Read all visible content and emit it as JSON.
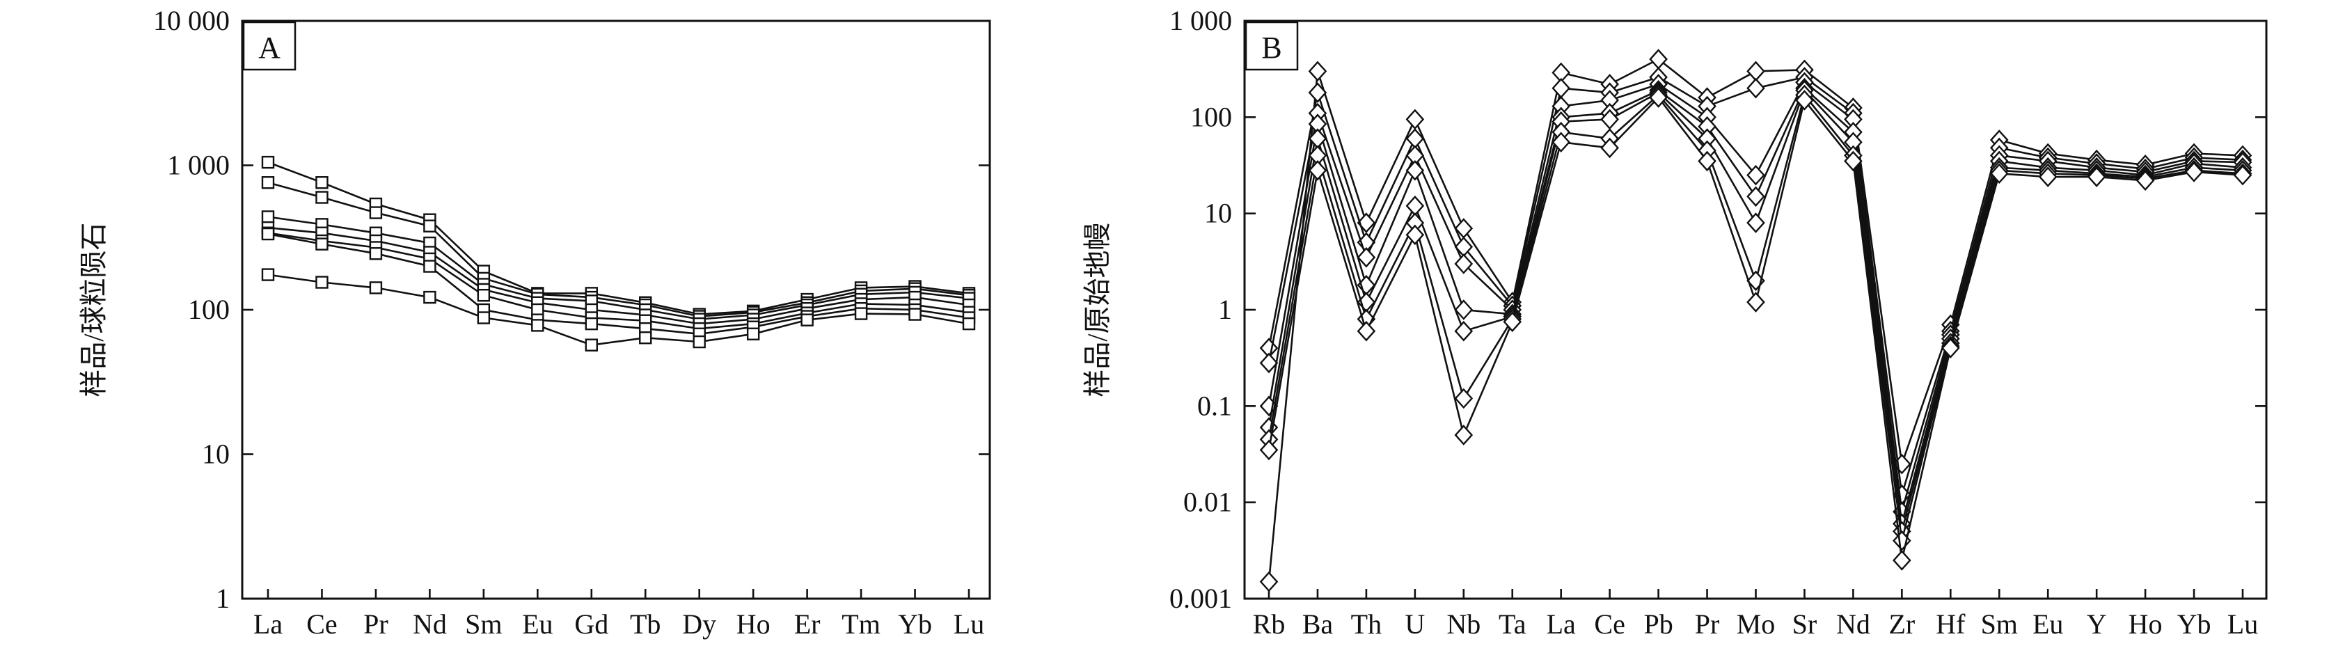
{
  "chart_data": [
    {
      "type": "line",
      "panel_label": "A",
      "ylabel": "样品/球粒陨石",
      "yscale": "log",
      "ylim": [
        1,
        10000
      ],
      "y_ticks": [
        1,
        10,
        100,
        1000,
        10000
      ],
      "y_tick_labels": [
        "1",
        "10",
        "100",
        "1 000",
        "10 000"
      ],
      "categories": [
        "La",
        "Ce",
        "Pr",
        "Nd",
        "Sm",
        "Eu",
        "Gd",
        "Tb",
        "Dy",
        "Ho",
        "Er",
        "Tm",
        "Yb",
        "Lu"
      ],
      "marker": "square",
      "series": [
        {
          "values": [
            1050,
            760,
            540,
            420,
            185,
            130,
            130,
            112,
            93,
            98,
            118,
            142,
            145,
            130
          ]
        },
        {
          "values": [
            760,
            600,
            470,
            380,
            165,
            128,
            122,
            108,
            90,
            96,
            112,
            135,
            140,
            126
          ]
        },
        {
          "values": [
            440,
            390,
            340,
            290,
            150,
            120,
            115,
            100,
            86,
            92,
            108,
            128,
            132,
            120
          ]
        },
        {
          "values": [
            370,
            340,
            300,
            250,
            138,
            112,
            100,
            92,
            80,
            86,
            102,
            118,
            122,
            108
          ]
        },
        {
          "values": [
            340,
            300,
            270,
            225,
            126,
            100,
            88,
            84,
            74,
            80,
            95,
            110,
            108,
            96
          ]
        },
        {
          "values": [
            335,
            285,
            245,
            200,
            100,
            85,
            80,
            74,
            68,
            76,
            90,
            102,
            100,
            88
          ]
        },
        {
          "values": [
            175,
            155,
            142,
            122,
            88,
            78,
            57,
            64,
            60,
            68,
            85,
            94,
            93,
            80
          ]
        }
      ]
    },
    {
      "type": "line",
      "panel_label": "B",
      "ylabel": "样品/原始地幔",
      "yscale": "log",
      "ylim": [
        0.001,
        1000
      ],
      "y_ticks": [
        0.001,
        0.01,
        0.1,
        1,
        10,
        100,
        1000
      ],
      "y_tick_labels": [
        "0.001",
        "0.01",
        "0.1",
        "1",
        "10",
        "100",
        "1 000"
      ],
      "categories": [
        "Rb",
        "Ba",
        "Th",
        "U",
        "Nb",
        "Ta",
        "La",
        "Ce",
        "Pb",
        "Pr",
        "Mo",
        "Sr",
        "Nd",
        "Zr",
        "Hf",
        "Sm",
        "Eu",
        "Y",
        "Ho",
        "Yb",
        "Lu"
      ],
      "marker": "diamond",
      "series": [
        {
          "values": [
            0.0015,
            300,
            8,
            95,
            7,
            1.2,
            290,
            220,
            400,
            160,
            300,
            310,
            125,
            0.025,
            0.7,
            58,
            42,
            36,
            32,
            42,
            40
          ]
        },
        {
          "values": [
            0.4,
            180,
            5,
            60,
            4.5,
            1.1,
            200,
            180,
            260,
            130,
            200,
            260,
            110,
            0.012,
            0.6,
            48,
            38,
            33,
            29,
            38,
            36
          ]
        },
        {
          "values": [
            0.28,
            110,
            3.5,
            40,
            3,
            1.0,
            130,
            150,
            220,
            100,
            25,
            230,
            95,
            0.008,
            0.55,
            40,
            35,
            30,
            27,
            35,
            34
          ]
        },
        {
          "values": [
            0.1,
            85,
            1.8,
            28,
            1,
            0.9,
            100,
            110,
            190,
            80,
            15,
            200,
            70,
            0.006,
            0.5,
            35,
            30,
            28,
            25,
            33,
            30
          ]
        },
        {
          "values": [
            0.06,
            60,
            1.2,
            12,
            0.6,
            0.85,
            90,
            95,
            180,
            60,
            8,
            190,
            55,
            0.005,
            0.45,
            30,
            28,
            26,
            24,
            30,
            28
          ]
        },
        {
          "values": [
            0.045,
            40,
            0.8,
            8,
            0.12,
            0.8,
            70,
            60,
            170,
            45,
            2,
            170,
            40,
            0.004,
            0.42,
            28,
            26,
            25,
            23,
            28,
            26
          ]
        },
        {
          "values": [
            0.035,
            28,
            0.6,
            6,
            0.05,
            0.75,
            55,
            48,
            160,
            35,
            1.2,
            150,
            35,
            0.0025,
            0.4,
            26,
            24,
            24,
            22,
            27,
            25
          ]
        }
      ]
    }
  ]
}
